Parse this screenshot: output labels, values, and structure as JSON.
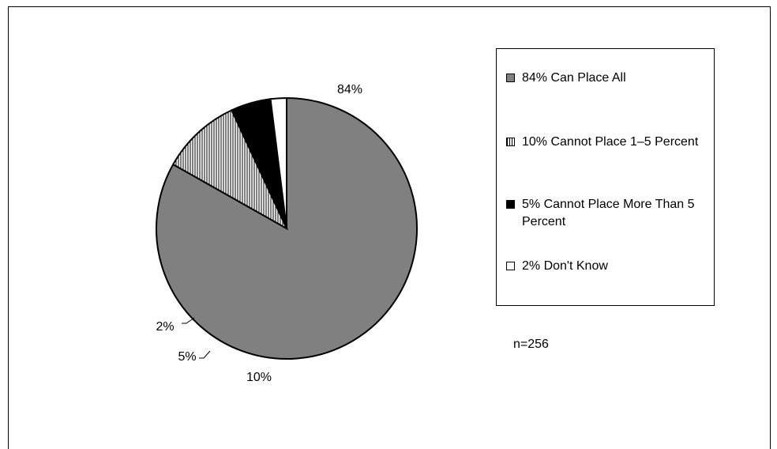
{
  "chart_data": {
    "type": "pie",
    "title": "",
    "categories": [
      "Can Place All",
      "Cannot Place 1–5 Percent",
      "Cannot Place More Than 5 Percent",
      "Don't Know"
    ],
    "values": [
      84,
      10,
      5,
      2
    ],
    "slice_labels": [
      "84%",
      "10%",
      "5%",
      "2%"
    ],
    "legend": {
      "placement": "right",
      "entries": [
        "84% Can Place All",
        "10% Cannot Place 1–5 Percent",
        "5% Cannot Place More Than 5 Percent",
        "2% Don't Know"
      ]
    },
    "colors": [
      "#808080",
      "hatch-vertical",
      "#000000",
      "#ffffff"
    ],
    "annotation": "n=256"
  }
}
